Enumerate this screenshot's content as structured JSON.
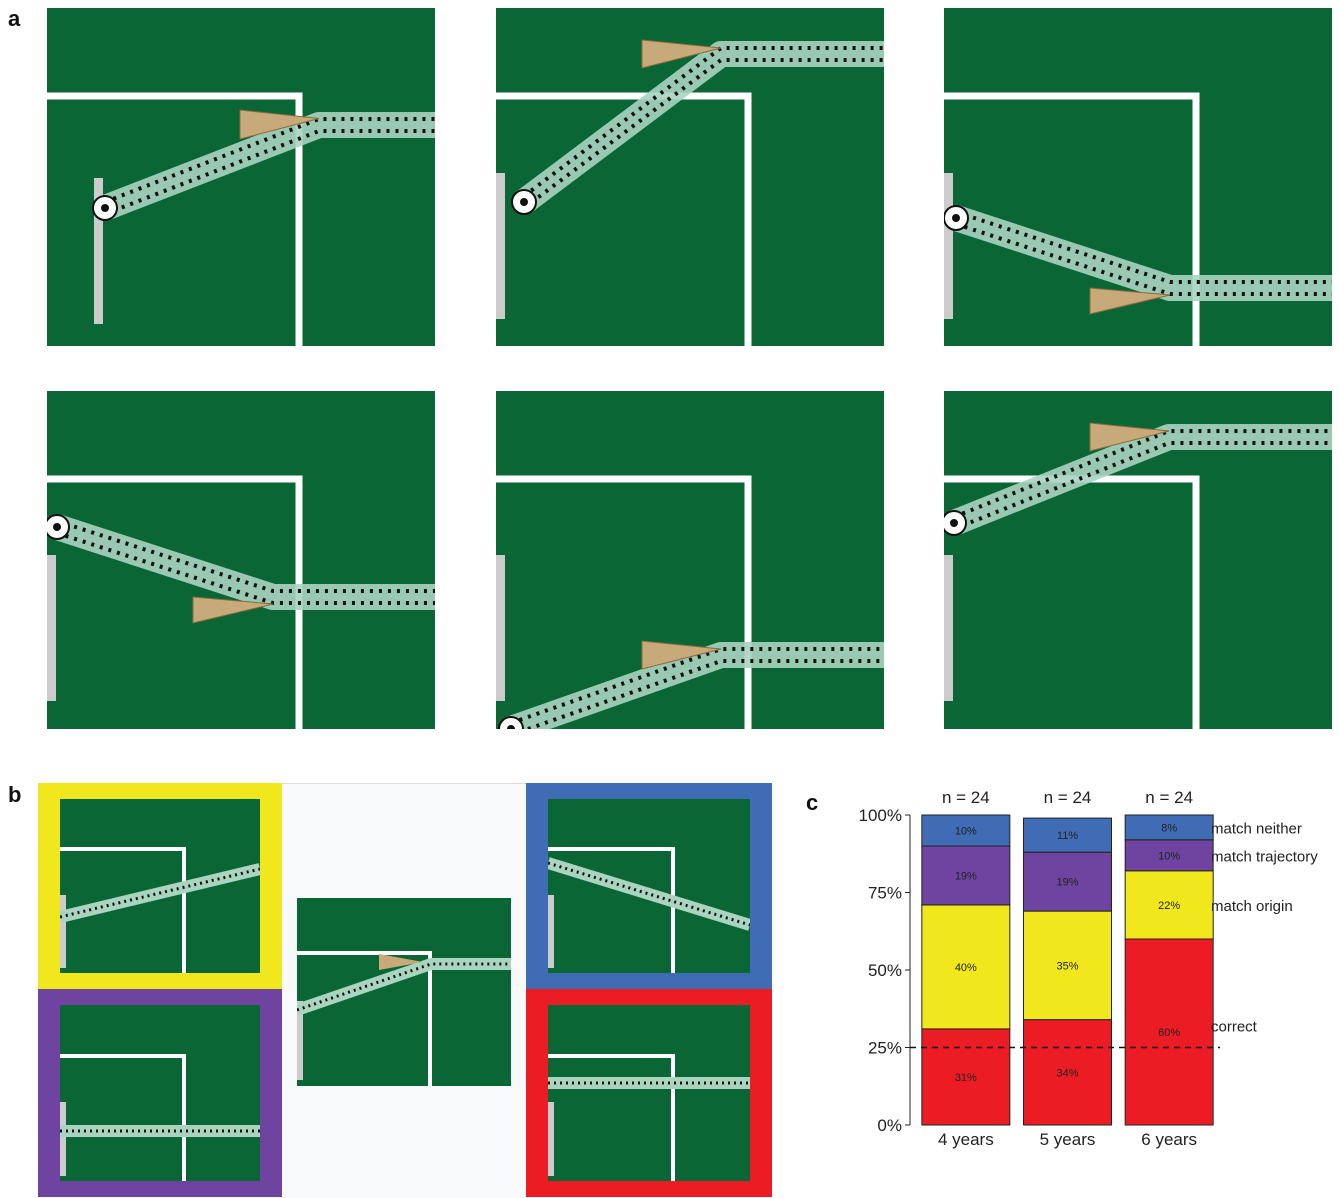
{
  "labels": {
    "a": "a",
    "b": "b",
    "c": "c"
  },
  "colors": {
    "field": "#0b6636",
    "line": "#ffffff",
    "goal": "#cccccc",
    "trail": "#a9d4c0",
    "cone": "#c8a979",
    "yellow": "#f0e81c",
    "blue": "#3f6cb5",
    "purple": "#6f44a0",
    "red": "#ec1c24"
  },
  "chart_data": {
    "type": "bar",
    "stacked": true,
    "categories": [
      "4 years",
      "5 years",
      "6 years"
    ],
    "n_labels": [
      "n = 24",
      "n = 24",
      "n = 24"
    ],
    "series": [
      {
        "name": "correct",
        "color": "#ec1c24",
        "values": [
          31,
          34,
          60
        ],
        "labels": [
          "31%",
          "34%",
          "60%"
        ]
      },
      {
        "name": "match origin",
        "color": "#f0e81c",
        "values": [
          40,
          35,
          22
        ],
        "labels": [
          "40%",
          "35%",
          "22%"
        ]
      },
      {
        "name": "match trajectory",
        "color": "#6f44a0",
        "values": [
          19,
          19,
          10
        ],
        "labels": [
          "19%",
          "19%",
          "10%"
        ]
      },
      {
        "name": "match neither",
        "color": "#3f6cb5",
        "values": [
          10,
          11,
          8
        ],
        "labels": [
          "10%",
          "11%",
          "8%"
        ]
      }
    ],
    "yticks": [
      "0%",
      "25%",
      "50%",
      "75%",
      "100%"
    ],
    "ylim": [
      0,
      100
    ],
    "chance_line": 25
  }
}
